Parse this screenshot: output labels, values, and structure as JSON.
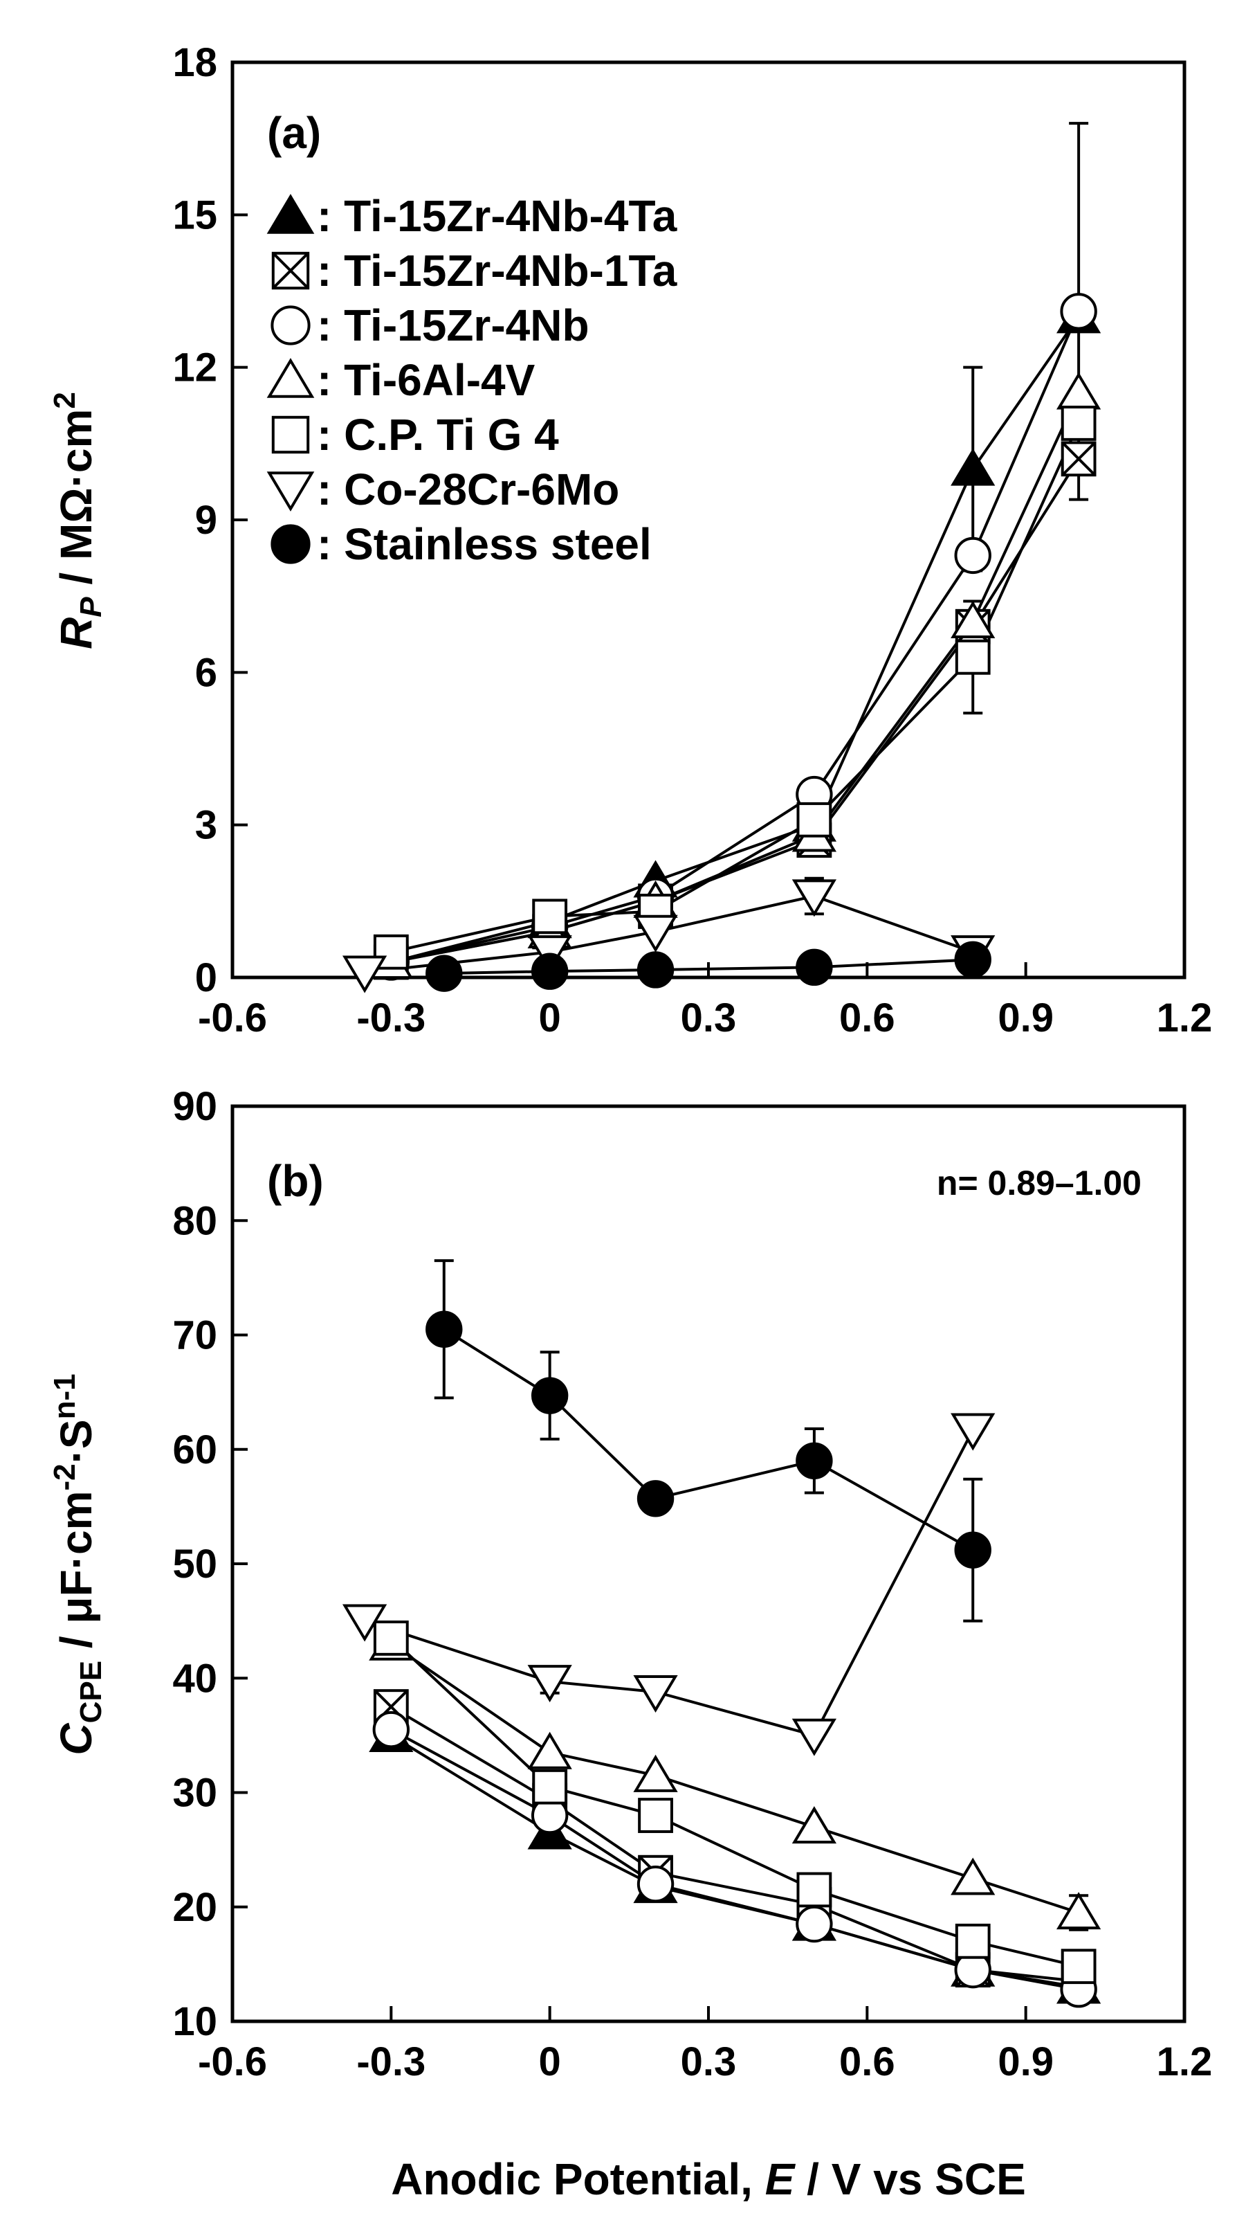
{
  "chart_data": [
    {
      "type": "scatter",
      "panel_label": "(a)",
      "ylabel": "R_P / MΩ·cm²",
      "xlim": [
        -0.6,
        1.2
      ],
      "ylim": [
        0,
        18
      ],
      "xticks": [
        -0.6,
        -0.3,
        0,
        0.3,
        0.6,
        0.9,
        1.2
      ],
      "xtick_labels": [
        "-0.6",
        "-0.3",
        "0",
        "0.3",
        "0.6",
        "0.9",
        "1.2"
      ],
      "yticks": [
        0,
        3,
        6,
        9,
        12,
        15,
        18
      ],
      "ytick_labels": [
        "0",
        "3",
        "6",
        "9",
        "12",
        "15",
        "18"
      ],
      "grid": false,
      "legend_position": "top-left",
      "series": [
        {
          "name": "Ti-15Zr-4Nb-4Ta",
          "marker": "triangle-filled",
          "x": [
            -0.3,
            0,
            0.2,
            0.5,
            0.8,
            1.0
          ],
          "y": [
            0.3,
            1.1,
            1.9,
            3.0,
            10.0,
            13.0
          ],
          "err": [
            0,
            0,
            0,
            0,
            2.0,
            0
          ]
        },
        {
          "name": "Ti-15Zr-4Nb-1Ta",
          "marker": "square-x",
          "x": [
            -0.3,
            0,
            0.2,
            0.5,
            0.8,
            1.0
          ],
          "y": [
            0.3,
            0.9,
            1.5,
            2.7,
            6.9,
            10.2
          ],
          "err": [
            0,
            0,
            0,
            0,
            0,
            0
          ]
        },
        {
          "name": "Ti-15Zr-4Nb",
          "marker": "circle-open",
          "x": [
            -0.3,
            0,
            0.2,
            0.5,
            0.8,
            1.0
          ],
          "y": [
            0.3,
            1.0,
            1.6,
            3.6,
            8.3,
            13.1
          ],
          "err": [
            0,
            0,
            0,
            0,
            0,
            3.7
          ]
        },
        {
          "name": "Ti-6Al-4V",
          "marker": "triangle-open",
          "x": [
            -0.3,
            0,
            0.2,
            0.5,
            0.8,
            1.0
          ],
          "y": [
            0.3,
            0.9,
            1.5,
            2.8,
            7.0,
            11.5
          ],
          "err": [
            0,
            0,
            0,
            0,
            0,
            0
          ]
        },
        {
          "name": "C.P. Ti G 4",
          "marker": "square-open",
          "x": [
            -0.3,
            0,
            0.2,
            0.5,
            0.8,
            1.0
          ],
          "y": [
            0.5,
            1.2,
            1.3,
            3.1,
            6.3,
            10.9
          ],
          "err": [
            0,
            0,
            0,
            0,
            1.1,
            0
          ]
        },
        {
          "name": "Co-28Cr-6Mo",
          "marker": "triangle-down-open",
          "x": [
            -0.35,
            0,
            0.2,
            0.5,
            0.8
          ],
          "y": [
            0.1,
            0.5,
            0.9,
            1.6,
            0.5
          ],
          "err": [
            0,
            0,
            0,
            0.35,
            0
          ]
        },
        {
          "name": "Stainless steel",
          "marker": "circle-filled",
          "x": [
            -0.2,
            0,
            0.2,
            0.5,
            0.8
          ],
          "y": [
            0.08,
            0.12,
            0.15,
            0.2,
            0.35
          ],
          "err": [
            0,
            0,
            0,
            0,
            0
          ]
        }
      ]
    },
    {
      "type": "scatter",
      "panel_label": "(b)",
      "annotation": "n= 0.89–1.00",
      "ylabel": "C_CPE / μF·cm⁻²·Sⁿ⁻¹",
      "xlabel": "Anodic Potential, E / V vs SCE",
      "xlim": [
        -0.6,
        1.2
      ],
      "ylim": [
        10,
        90
      ],
      "xticks": [
        -0.6,
        -0.3,
        0,
        0.3,
        0.6,
        0.9,
        1.2
      ],
      "xtick_labels": [
        "-0.6",
        "-0.3",
        "0",
        "0.3",
        "0.6",
        "0.9",
        "1.2"
      ],
      "yticks": [
        10,
        20,
        30,
        40,
        50,
        60,
        70,
        80,
        90
      ],
      "ytick_labels": [
        "10",
        "20",
        "30",
        "40",
        "50",
        "60",
        "70",
        "80",
        "90"
      ],
      "grid": false,
      "series": [
        {
          "name": "Ti-15Zr-4Nb-4Ta",
          "marker": "triangle-filled",
          "x": [
            -0.3,
            0,
            0.2,
            0.5,
            0.8,
            1.0
          ],
          "y": [
            35,
            26.5,
            21.8,
            18.5,
            14.5,
            13.0
          ],
          "err": [
            0,
            0,
            0,
            0,
            0,
            0
          ]
        },
        {
          "name": "Ti-15Zr-4Nb-1Ta",
          "marker": "square-x",
          "x": [
            -0.3,
            0,
            0.2,
            0.5,
            0.8,
            1.0
          ],
          "y": [
            37.5,
            29.3,
            23.0,
            20.2,
            14.5,
            13.5
          ],
          "err": [
            0,
            0,
            0,
            0,
            0,
            0
          ]
        },
        {
          "name": "Ti-15Zr-4Nb",
          "marker": "circle-open",
          "x": [
            -0.3,
            0,
            0.2,
            0.5,
            0.8,
            1.0
          ],
          "y": [
            35.5,
            28.0,
            22.0,
            18.5,
            14.5,
            12.8
          ],
          "err": [
            0,
            0,
            0,
            0,
            0,
            0
          ]
        },
        {
          "name": "Ti-6Al-4V",
          "marker": "triangle-open",
          "x": [
            -0.3,
            0,
            0.2,
            0.5,
            0.8,
            1.0
          ],
          "y": [
            43,
            33.5,
            31.5,
            27,
            22.5,
            19.5
          ],
          "err": [
            0,
            0,
            0,
            0,
            0,
            1.5
          ]
        },
        {
          "name": "C.P. Ti G 4",
          "marker": "square-open",
          "x": [
            -0.3,
            0,
            0.2,
            0.5,
            0.8,
            1.0
          ],
          "y": [
            43.5,
            30.5,
            28.0,
            21.5,
            17.0,
            14.8
          ],
          "err": [
            0,
            0,
            0,
            0,
            0,
            0
          ]
        },
        {
          "name": "Co-28Cr-6Mo",
          "marker": "triangle-down-open",
          "x": [
            -0.35,
            0,
            0.2,
            0.5,
            0.8
          ],
          "y": [
            45,
            39.7,
            38.8,
            35.0,
            61.7
          ],
          "err": [
            0,
            1.0,
            0,
            0,
            0
          ]
        },
        {
          "name": "Stainless steel",
          "marker": "circle-filled",
          "x": [
            -0.2,
            0,
            0.2,
            0.5,
            0.8
          ],
          "y": [
            70.5,
            64.7,
            55.7,
            59.0,
            51.2
          ],
          "err": [
            6.0,
            3.8,
            0,
            2.8,
            6.2
          ]
        }
      ]
    }
  ]
}
